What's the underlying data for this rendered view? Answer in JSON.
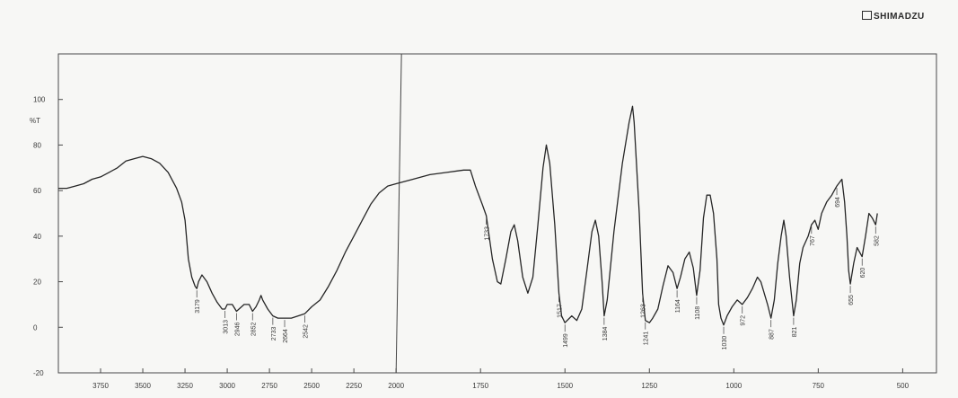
{
  "brand": {
    "name": "SHIMADZU"
  },
  "chart_data": {
    "type": "line",
    "ylabel": "%T",
    "ylim": [
      -20,
      120
    ],
    "xlim": [
      4000,
      400
    ],
    "axis_break": 2000,
    "y_ticks": [
      -20,
      0,
      20,
      40,
      60,
      80,
      100
    ],
    "x_ticks": [
      3750,
      3500,
      3250,
      3000,
      2750,
      2500,
      2250,
      2000,
      1750,
      1500,
      1250,
      1000,
      750,
      500
    ],
    "series": [
      {
        "points": [
          [
            4000,
            61
          ],
          [
            3950,
            61
          ],
          [
            3900,
            62
          ],
          [
            3850,
            63
          ],
          [
            3800,
            65
          ],
          [
            3750,
            66
          ],
          [
            3700,
            68
          ],
          [
            3650,
            70
          ],
          [
            3600,
            73
          ],
          [
            3550,
            74
          ],
          [
            3500,
            75
          ],
          [
            3450,
            74
          ],
          [
            3400,
            72
          ],
          [
            3350,
            68
          ],
          [
            3300,
            61
          ],
          [
            3270,
            55
          ],
          [
            3250,
            47
          ],
          [
            3230,
            30
          ],
          [
            3210,
            22
          ],
          [
            3190,
            18
          ],
          [
            3180,
            17
          ],
          [
            3170,
            20
          ],
          [
            3150,
            23
          ],
          [
            3120,
            20
          ],
          [
            3090,
            15
          ],
          [
            3060,
            11
          ],
          [
            3030,
            8
          ],
          [
            3013,
            8
          ],
          [
            3000,
            10
          ],
          [
            2970,
            10
          ],
          [
            2945,
            7
          ],
          [
            2930,
            8
          ],
          [
            2900,
            10
          ],
          [
            2870,
            10
          ],
          [
            2850,
            7
          ],
          [
            2830,
            9
          ],
          [
            2810,
            12
          ],
          [
            2800,
            14
          ],
          [
            2790,
            12
          ],
          [
            2760,
            8
          ],
          [
            2730,
            5
          ],
          [
            2700,
            4
          ],
          [
            2660,
            4
          ],
          [
            2620,
            4
          ],
          [
            2580,
            5
          ],
          [
            2540,
            6
          ],
          [
            2500,
            9
          ],
          [
            2450,
            12
          ],
          [
            2400,
            18
          ],
          [
            2350,
            25
          ],
          [
            2300,
            33
          ],
          [
            2250,
            40
          ],
          [
            2200,
            47
          ],
          [
            2150,
            54
          ],
          [
            2100,
            59
          ],
          [
            2050,
            62
          ],
          [
            2000,
            63
          ],
          [
            1950,
            65
          ],
          [
            1900,
            67
          ],
          [
            1850,
            68
          ],
          [
            1800,
            69
          ],
          [
            1780,
            69
          ],
          [
            1765,
            62
          ],
          [
            1745,
            54
          ],
          [
            1733,
            49
          ],
          [
            1715,
            30
          ],
          [
            1700,
            20
          ],
          [
            1690,
            19
          ],
          [
            1675,
            30
          ],
          [
            1660,
            42
          ],
          [
            1650,
            45
          ],
          [
            1640,
            38
          ],
          [
            1625,
            22
          ],
          [
            1610,
            15
          ],
          [
            1595,
            22
          ],
          [
            1580,
            45
          ],
          [
            1565,
            70
          ],
          [
            1555,
            80
          ],
          [
            1545,
            72
          ],
          [
            1530,
            45
          ],
          [
            1518,
            15
          ],
          [
            1510,
            5
          ],
          [
            1500,
            2
          ],
          [
            1480,
            5
          ],
          [
            1465,
            3
          ],
          [
            1450,
            8
          ],
          [
            1435,
            25
          ],
          [
            1420,
            42
          ],
          [
            1410,
            47
          ],
          [
            1400,
            40
          ],
          [
            1390,
            20
          ],
          [
            1384,
            5
          ],
          [
            1375,
            12
          ],
          [
            1355,
            42
          ],
          [
            1330,
            72
          ],
          [
            1310,
            90
          ],
          [
            1300,
            97
          ],
          [
            1295,
            90
          ],
          [
            1280,
            50
          ],
          [
            1270,
            15
          ],
          [
            1262,
            3
          ],
          [
            1250,
            2
          ],
          [
            1240,
            4
          ],
          [
            1225,
            8
          ],
          [
            1210,
            18
          ],
          [
            1195,
            27
          ],
          [
            1180,
            24
          ],
          [
            1168,
            17
          ],
          [
            1158,
            22
          ],
          [
            1145,
            30
          ],
          [
            1132,
            33
          ],
          [
            1120,
            26
          ],
          [
            1110,
            14
          ],
          [
            1100,
            25
          ],
          [
            1090,
            48
          ],
          [
            1080,
            58
          ],
          [
            1070,
            58
          ],
          [
            1060,
            50
          ],
          [
            1050,
            30
          ],
          [
            1045,
            10
          ],
          [
            1038,
            4
          ],
          [
            1030,
            1
          ],
          [
            1020,
            5
          ],
          [
            1005,
            9
          ],
          [
            990,
            12
          ],
          [
            975,
            10
          ],
          [
            960,
            13
          ],
          [
            945,
            17
          ],
          [
            930,
            22
          ],
          [
            920,
            20
          ],
          [
            900,
            10
          ],
          [
            890,
            4
          ],
          [
            880,
            12
          ],
          [
            870,
            28
          ],
          [
            860,
            40
          ],
          [
            852,
            47
          ],
          [
            845,
            40
          ],
          [
            835,
            22
          ],
          [
            823,
            5
          ],
          [
            815,
            12
          ],
          [
            805,
            28
          ],
          [
            795,
            35
          ],
          [
            780,
            40
          ],
          [
            770,
            45
          ],
          [
            760,
            47
          ],
          [
            750,
            43
          ],
          [
            740,
            50
          ],
          [
            725,
            55
          ],
          [
            710,
            58
          ],
          [
            695,
            62
          ],
          [
            680,
            65
          ],
          [
            672,
            55
          ],
          [
            665,
            40
          ],
          [
            660,
            25
          ],
          [
            655,
            19
          ],
          [
            645,
            28
          ],
          [
            635,
            35
          ],
          [
            620,
            31
          ],
          [
            610,
            40
          ],
          [
            600,
            50
          ],
          [
            590,
            48
          ],
          [
            580,
            45
          ],
          [
            575,
            50
          ]
        ]
      }
    ],
    "peak_labels": [
      {
        "x": 3180,
        "y": 17,
        "text": "3179"
      },
      {
        "x": 3013,
        "y": 8,
        "text": "3013"
      },
      {
        "x": 2945,
        "y": 7,
        "text": "2946"
      },
      {
        "x": 2850,
        "y": 7,
        "text": "2852"
      },
      {
        "x": 2730,
        "y": 5,
        "text": "2733"
      },
      {
        "x": 2660,
        "y": 4,
        "text": "2664"
      },
      {
        "x": 2540,
        "y": 6,
        "text": "2542"
      },
      {
        "x": 1733,
        "y": 49,
        "text": "1733"
      },
      {
        "x": 1518,
        "y": 15,
        "text": "1517"
      },
      {
        "x": 1500,
        "y": 2,
        "text": "1499"
      },
      {
        "x": 1384,
        "y": 5,
        "text": "1384"
      },
      {
        "x": 1270,
        "y": 15,
        "text": "1263"
      },
      {
        "x": 1262,
        "y": 3,
        "text": "1241"
      },
      {
        "x": 1168,
        "y": 17,
        "text": "1164"
      },
      {
        "x": 1110,
        "y": 14,
        "text": "1108"
      },
      {
        "x": 1030,
        "y": 1,
        "text": "1030"
      },
      {
        "x": 975,
        "y": 10,
        "text": "972"
      },
      {
        "x": 890,
        "y": 4,
        "text": "887"
      },
      {
        "x": 823,
        "y": 5,
        "text": "821"
      },
      {
        "x": 770,
        "y": 45,
        "text": "767"
      },
      {
        "x": 695,
        "y": 62,
        "text": "694"
      },
      {
        "x": 655,
        "y": 19,
        "text": "655"
      },
      {
        "x": 620,
        "y": 31,
        "text": "620"
      },
      {
        "x": 580,
        "y": 45,
        "text": "582"
      }
    ]
  }
}
